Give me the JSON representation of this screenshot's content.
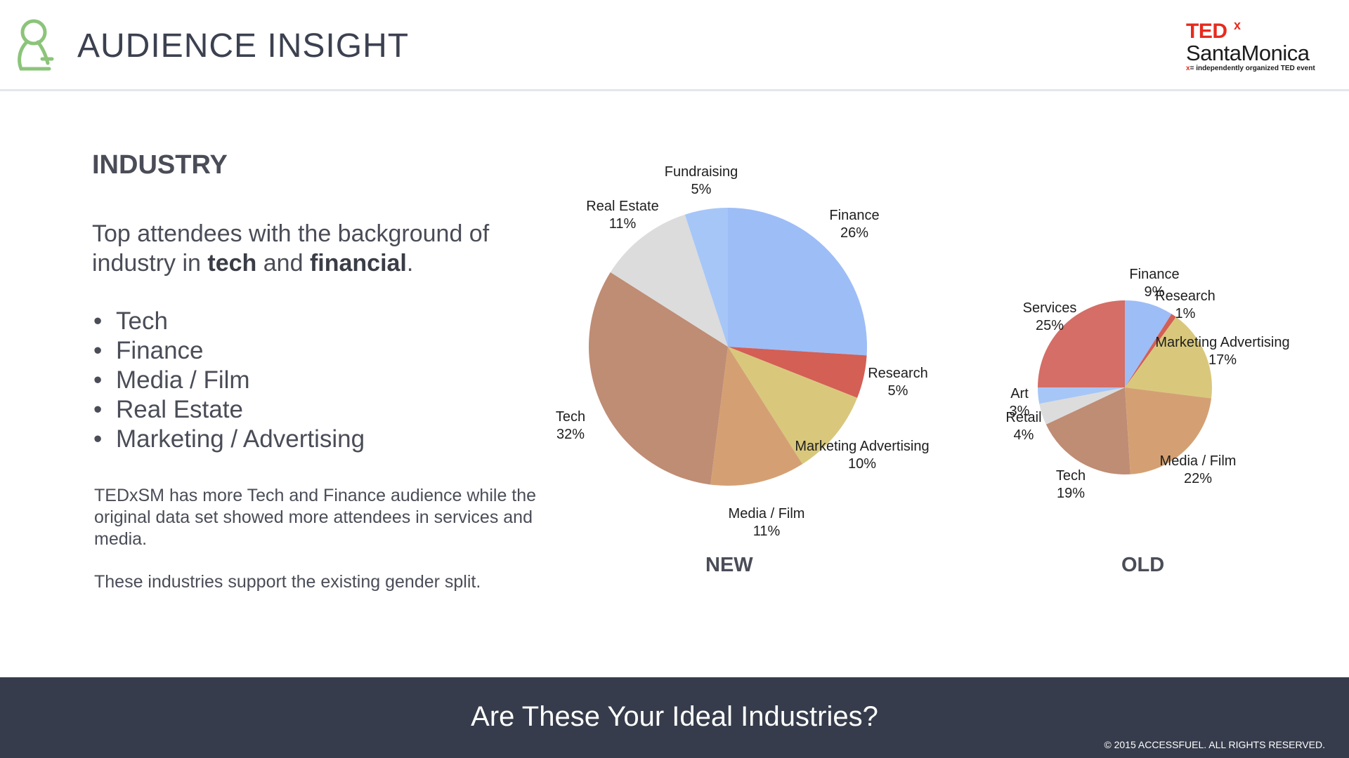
{
  "header": {
    "title": "AUDIENCE INSIGHT",
    "brand_icon": "person-outline-icon",
    "brand_color": "#8cc47a",
    "logo": {
      "word": "TED",
      "superscript": "x",
      "city": "SantaMonica",
      "tagline_mark": "x",
      "tagline_eq": "=",
      "tagline": "independently organized TED event",
      "accent": "#e62b1e"
    }
  },
  "content": {
    "heading": "INDUSTRY",
    "intro": {
      "before": "Top attendees with the background of industry in ",
      "bold1": "tech",
      "middle": " and ",
      "bold2": "financial",
      "after": "."
    },
    "bullets": [
      "Tech",
      "Finance",
      "Media / Film",
      "Real Estate",
      "Marketing / Advertising"
    ],
    "bullet_char": "•",
    "paragraph1": "TEDxSM has more Tech and Finance audience while the original data set showed more attendees in services and media.",
    "paragraph2": "These industries support the existing gender split."
  },
  "chart_data": [
    {
      "type": "pie",
      "title": "NEW",
      "categories": [
        "Finance",
        "Research",
        "Marketing Advertising",
        "Media / Film",
        "Tech",
        "Real Estate",
        "Fundraising"
      ],
      "values": [
        26,
        5,
        10,
        11,
        32,
        11,
        5
      ],
      "labels": [
        "26%",
        "5%",
        "10%",
        "11%",
        "32%",
        "11%",
        "5%"
      ],
      "colors": [
        "#9dbdf7",
        "#d35f55",
        "#d9c87c",
        "#d4a073",
        "#bf8c74",
        "#dcdcdc",
        "#a6c6f7"
      ]
    },
    {
      "type": "pie",
      "title": "OLD",
      "categories": [
        "Finance",
        "Research",
        "Marketing Advertising",
        "Media / Film",
        "Tech",
        "Retail",
        "Art",
        "Services"
      ],
      "values": [
        9,
        1,
        17,
        22,
        19,
        4,
        3,
        25
      ],
      "labels": [
        "9%",
        "1%",
        "17%",
        "22%",
        "19%",
        "4%",
        "3%",
        "25%"
      ],
      "colors": [
        "#9dbdf7",
        "#d35f55",
        "#d9c87c",
        "#d4a073",
        "#bf8c74",
        "#dcdcdc",
        "#a6c6f7",
        "#d46e66"
      ]
    }
  ],
  "footer": {
    "cta": "Are These Your Ideal Industries?",
    "copyright": "© 2015 ACCESSFUEL.  ALL RIGHTS RESERVED.",
    "background": "#363c4b"
  }
}
